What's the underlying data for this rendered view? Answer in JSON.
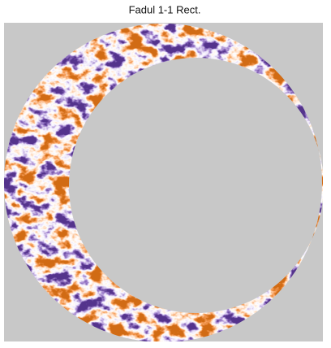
{
  "title": "Fadul 1-1 Rect."
}
